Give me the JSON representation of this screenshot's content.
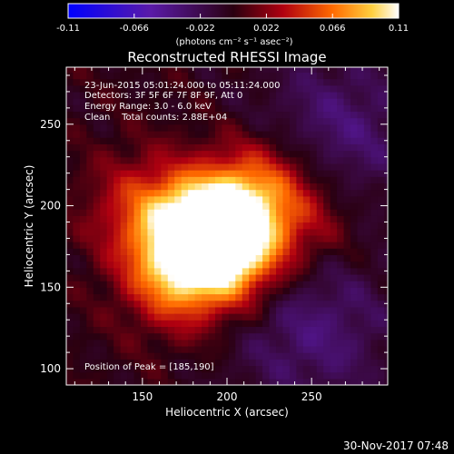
{
  "chart_data": {
    "type": "heatmap",
    "title": "Reconstructed RHESSI Image",
    "xlabel": "Heliocentric X (arcsec)",
    "ylabel": "Heliocentric Y (arcsec)",
    "xlim": [
      105,
      295
    ],
    "ylim": [
      90,
      285
    ],
    "x_ticks": [
      150,
      200,
      250
    ],
    "y_ticks": [
      100,
      150,
      200,
      250
    ],
    "colorbar": {
      "ticks": [
        "-0.11",
        "-0.066",
        "-0.022",
        "0.022",
        "0.066",
        "0.11"
      ],
      "range": [
        -0.11,
        0.11
      ],
      "unit_label": "(photons cm⁻² s⁻¹ asec⁻²)"
    },
    "annotations": [
      "23-Jun-2015 05:01:24.000 to 05:11:24.000",
      "Detectors: 3F 5F 6F 7F 8F 9F, Att 0",
      "Energy Range: 3.0 - 6.0 keV",
      "Clean    Total counts: 2.88E+04"
    ],
    "peak_label": "Position of Peak = [185,190]",
    "peak": [
      185,
      190
    ],
    "sources": [
      {
        "x": 200,
        "y": 190,
        "amp": 0.11
      },
      {
        "x": 180,
        "y": 180,
        "amp": 0.08
      },
      {
        "x": 170,
        "y": 155,
        "amp": 0.055
      },
      {
        "x": 205,
        "y": 165,
        "amp": 0.045
      },
      {
        "x": 150,
        "y": 200,
        "amp": 0.04
      },
      {
        "x": 225,
        "y": 215,
        "amp": 0.04
      },
      {
        "x": 250,
        "y": 190,
        "amp": 0.025
      }
    ],
    "negative_regions": [
      {
        "x": 265,
        "y": 245,
        "amp": -0.035
      },
      {
        "x": 250,
        "y": 125,
        "amp": -0.035
      }
    ]
  },
  "footer_date": "30-Nov-2017 07:48"
}
